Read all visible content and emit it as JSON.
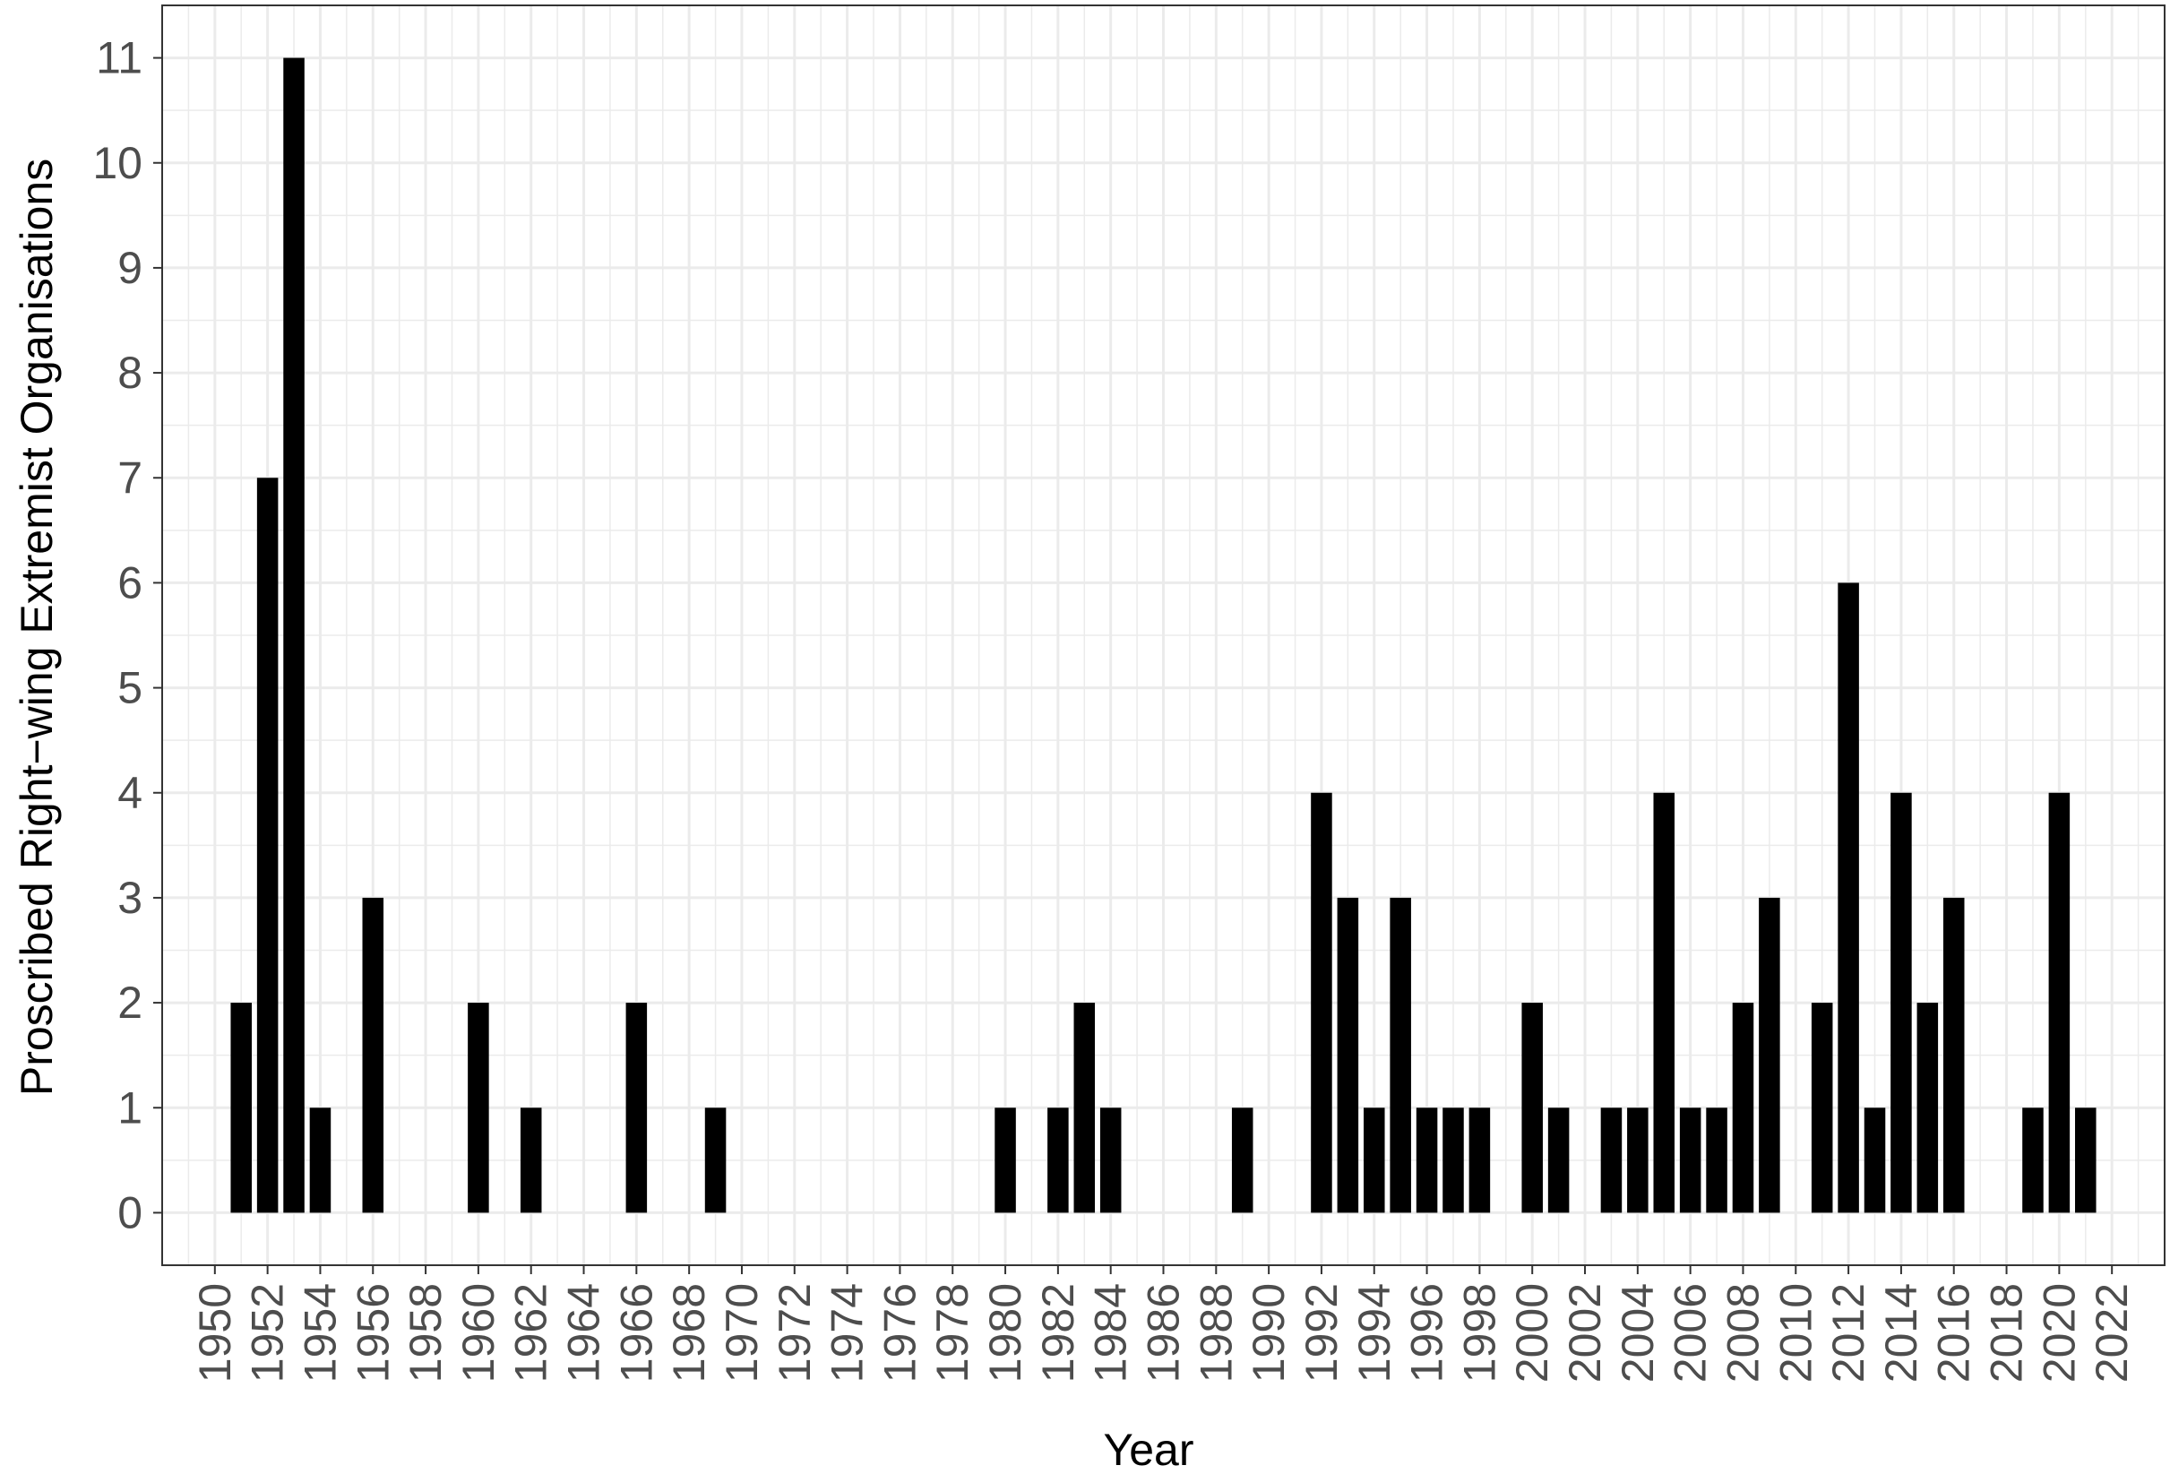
{
  "chart_data": {
    "type": "bar",
    "xlabel": "Year",
    "ylabel": "Proscribed Right−wing Extremist Organisations",
    "xlim": [
      1948,
      2024
    ],
    "ylim": [
      -0.5,
      11.5
    ],
    "x_ticks": [
      1950,
      1952,
      1954,
      1956,
      1958,
      1960,
      1962,
      1964,
      1966,
      1968,
      1970,
      1972,
      1974,
      1976,
      1978,
      1980,
      1982,
      1984,
      1986,
      1988,
      1990,
      1992,
      1994,
      1996,
      1998,
      2000,
      2002,
      2004,
      2006,
      2008,
      2010,
      2012,
      2014,
      2016,
      2018,
      2020,
      2022
    ],
    "y_ticks": [
      0,
      1,
      2,
      3,
      4,
      5,
      6,
      7,
      8,
      9,
      10,
      11
    ],
    "grid": true,
    "bar_color": "#000000",
    "grid_color": "#ebebeb",
    "x": [
      1951,
      1952,
      1953,
      1954,
      1956,
      1960,
      1962,
      1966,
      1969,
      1980,
      1982,
      1983,
      1984,
      1989,
      1992,
      1993,
      1994,
      1995,
      1996,
      1997,
      1998,
      2000,
      2001,
      2003,
      2004,
      2005,
      2006,
      2007,
      2008,
      2009,
      2011,
      2012,
      2013,
      2014,
      2015,
      2016,
      2019,
      2020,
      2021
    ],
    "values": [
      2,
      7,
      11,
      1,
      3,
      2,
      1,
      2,
      1,
      1,
      1,
      2,
      1,
      1,
      4,
      3,
      1,
      3,
      1,
      1,
      1,
      2,
      1,
      1,
      1,
      4,
      1,
      1,
      2,
      3,
      2,
      6,
      1,
      4,
      2,
      3,
      1,
      4,
      1
    ]
  }
}
